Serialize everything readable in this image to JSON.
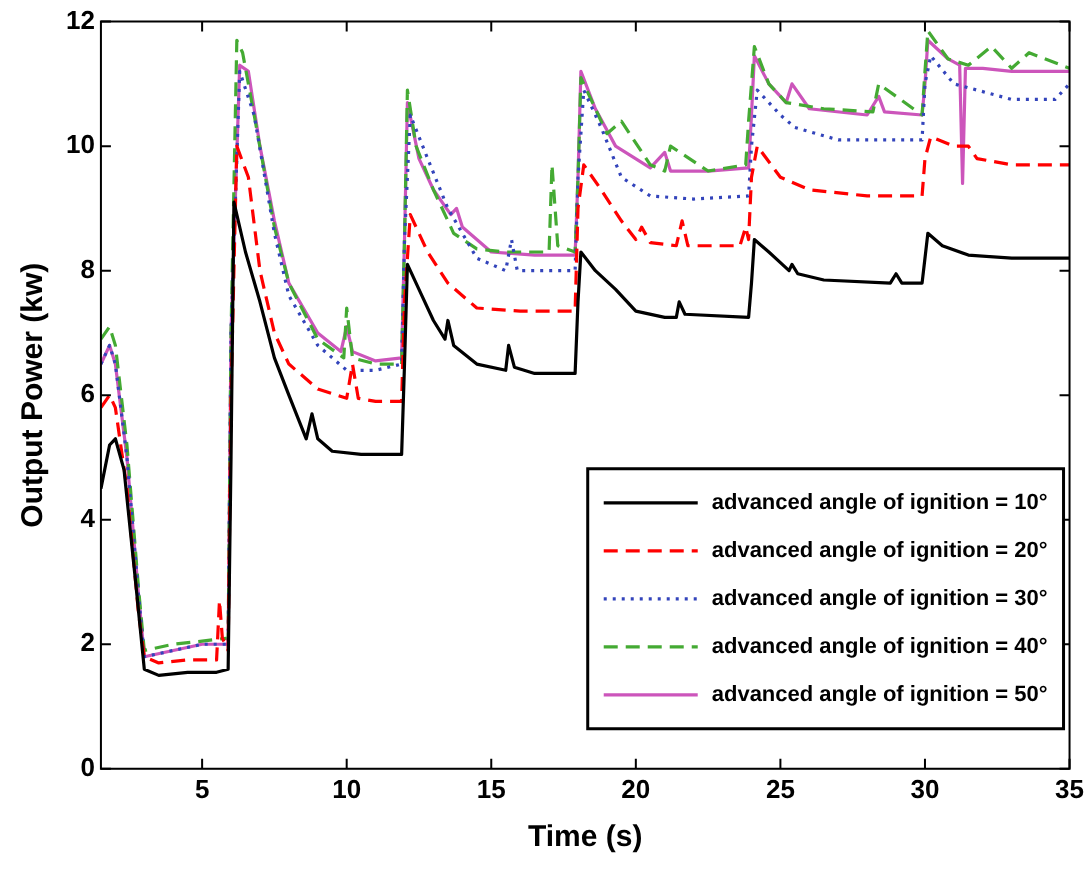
{
  "chart_data": {
    "type": "line",
    "xlabel": "Time (s)",
    "ylabel": "Output Power (kw)",
    "xlim": [
      1.5,
      35
    ],
    "xticks": [
      5,
      10,
      15,
      20,
      25,
      30,
      35
    ],
    "ylim": [
      0,
      12
    ],
    "yticks": [
      0,
      2,
      4,
      6,
      8,
      10,
      12
    ],
    "grid": false,
    "legend": "bottom right",
    "marker": "none",
    "series": [
      {
        "name": "advanced angle of ignition = 10°",
        "color": "#000000",
        "line_style": "solid",
        "x": [
          1.5,
          1.8,
          2.0,
          2.3,
          2.7,
          3.0,
          3.5,
          4.5,
          5.5,
          5.9,
          6.0,
          6.1,
          6.5,
          7.0,
          7.5,
          8.0,
          8.6,
          8.8,
          9.0,
          9.5,
          10.5,
          11.9,
          12.0,
          12.1,
          12.5,
          13.0,
          13.4,
          13.5,
          13.7,
          14.5,
          15.5,
          15.6,
          15.8,
          16.5,
          17.9,
          18.0,
          18.1,
          18.6,
          19.3,
          20.0,
          21.0,
          21.4,
          21.5,
          21.7,
          23.9,
          24.0,
          24.1,
          24.6,
          25.3,
          25.4,
          25.6,
          26.5,
          28.8,
          29.0,
          29.2,
          29.9,
          30.0,
          30.1,
          30.6,
          31.5,
          33.0,
          35.0
        ],
        "values": [
          4.5,
          5.2,
          5.3,
          4.8,
          3.0,
          1.6,
          1.5,
          1.55,
          1.55,
          1.6,
          5,
          9.1,
          8.3,
          7.5,
          6.6,
          6.0,
          5.3,
          5.7,
          5.3,
          5.1,
          5.05,
          5.05,
          6.5,
          8.1,
          7.7,
          7.2,
          6.9,
          7.2,
          6.8,
          6.5,
          6.4,
          6.8,
          6.45,
          6.35,
          6.35,
          7.5,
          8.3,
          8.0,
          7.7,
          7.35,
          7.25,
          7.25,
          7.5,
          7.3,
          7.25,
          7.8,
          8.5,
          8.3,
          8.0,
          8.1,
          7.95,
          7.85,
          7.8,
          7.95,
          7.8,
          7.8,
          8.2,
          8.6,
          8.4,
          8.25,
          8.2,
          8.2
        ]
      },
      {
        "name": "advanced angle of ignition = 20°",
        "color": "#ff0000",
        "line_style": "dashed",
        "x": [
          1.5,
          1.8,
          2.0,
          2.4,
          2.8,
          3.0,
          3.5,
          4.5,
          5.5,
          5.6,
          5.7,
          5.9,
          6.0,
          6.2,
          6.6,
          7.0,
          7.5,
          8.0,
          9.0,
          10.0,
          10.2,
          10.4,
          11.0,
          11.9,
          12.0,
          12.2,
          12.8,
          13.5,
          14.5,
          16.0,
          17.9,
          18.0,
          18.2,
          18.8,
          19.5,
          20.0,
          20.2,
          20.5,
          21.4,
          21.6,
          21.8,
          23.6,
          23.8,
          23.9,
          24.0,
          24.2,
          25.0,
          26.0,
          28.0,
          29.9,
          30.0,
          30.2,
          31.0,
          31.5,
          31.8,
          33.0,
          35.0
        ],
        "values": [
          5.8,
          6.0,
          5.8,
          4.5,
          2.5,
          1.8,
          1.7,
          1.75,
          1.75,
          2.7,
          2.1,
          1.9,
          6.0,
          10.0,
          9.5,
          8.0,
          7.0,
          6.5,
          6.1,
          5.95,
          6.5,
          5.95,
          5.9,
          5.9,
          7.5,
          8.9,
          8.3,
          7.8,
          7.4,
          7.35,
          7.35,
          9.0,
          9.7,
          9.3,
          8.8,
          8.5,
          8.7,
          8.45,
          8.4,
          8.8,
          8.4,
          8.4,
          8.7,
          8.5,
          9.5,
          10.0,
          9.5,
          9.3,
          9.2,
          9.2,
          9.8,
          10.15,
          10.0,
          10.0,
          9.8,
          9.7,
          9.7
        ]
      },
      {
        "name": "advanced angle of ignition = 30°",
        "color": "#3344bb",
        "line_style": "dotted",
        "x": [
          1.5,
          1.8,
          2.0,
          2.4,
          2.8,
          3.0,
          4.0,
          5.0,
          5.9,
          6.0,
          6.3,
          6.8,
          7.5,
          8.0,
          9.0,
          10.0,
          11.0,
          11.9,
          12.0,
          12.2,
          12.8,
          13.5,
          14.5,
          15.5,
          15.7,
          15.9,
          17.9,
          18.0,
          18.2,
          18.8,
          19.5,
          20.5,
          22.0,
          23.9,
          24.0,
          24.2,
          25.0,
          25.5,
          27.0,
          29.9,
          30.0,
          30.2,
          31.0,
          33.0,
          34.5,
          35.0
        ],
        "values": [
          6.5,
          6.8,
          6.5,
          5.0,
          2.8,
          1.8,
          1.9,
          2.0,
          2.0,
          7.0,
          11.2,
          10.5,
          8.6,
          7.6,
          6.8,
          6.4,
          6.4,
          6.5,
          8.5,
          10.5,
          9.8,
          9.0,
          8.2,
          8.0,
          8.5,
          8.0,
          8.0,
          9.5,
          10.9,
          10.3,
          9.5,
          9.2,
          9.15,
          9.2,
          10.0,
          10.9,
          10.5,
          10.3,
          10.1,
          10.1,
          11.0,
          11.45,
          11.0,
          10.75,
          10.75,
          11.0
        ]
      },
      {
        "name": "advanced angle of ignition = 40°",
        "color": "#44aa33",
        "line_style": "dashed",
        "x": [
          1.5,
          1.8,
          2.0,
          2.4,
          2.8,
          3.0,
          4.0,
          5.0,
          5.9,
          6.0,
          6.2,
          6.4,
          6.8,
          7.5,
          8.0,
          9.0,
          9.9,
          10.0,
          10.2,
          11.0,
          11.9,
          12.0,
          12.1,
          12.4,
          13.0,
          13.7,
          14.5,
          15.5,
          17.0,
          17.1,
          17.3,
          17.9,
          18.0,
          18.1,
          18.6,
          19.0,
          19.5,
          20.5,
          21.0,
          21.2,
          22.5,
          23.8,
          23.9,
          24.0,
          24.1,
          24.6,
          25.2,
          26.5,
          28.2,
          28.4,
          29.9,
          30.0,
          30.1,
          30.8,
          31.5,
          32.3,
          33.0,
          33.6,
          35.0
        ],
        "values": [
          6.9,
          7.1,
          6.8,
          5.2,
          2.9,
          1.9,
          2.0,
          2.05,
          2.1,
          7.0,
          11.7,
          11.5,
          10.5,
          8.7,
          7.8,
          6.9,
          6.6,
          7.4,
          6.6,
          6.5,
          6.5,
          8.5,
          10.9,
          10.0,
          9.3,
          8.6,
          8.35,
          8.3,
          8.3,
          9.7,
          8.4,
          8.3,
          9.5,
          11.1,
          10.6,
          10.2,
          10.4,
          9.7,
          9.6,
          10.0,
          9.6,
          9.7,
          10.4,
          11.0,
          11.6,
          11.0,
          10.7,
          10.6,
          10.55,
          11.0,
          10.5,
          11.2,
          11.85,
          11.4,
          11.3,
          11.6,
          11.25,
          11.5,
          11.25
        ]
      },
      {
        "name": "advanced angle of ignition = 50°",
        "color": "#cc55bb",
        "line_style": "solid",
        "x": [
          1.5,
          1.8,
          2.0,
          2.4,
          2.8,
          3.0,
          4.0,
          5.0,
          5.9,
          6.0,
          6.3,
          6.6,
          7.0,
          7.5,
          8.0,
          9.0,
          9.8,
          10.0,
          10.2,
          11.0,
          11.9,
          12.0,
          12.1,
          12.5,
          13.0,
          13.6,
          13.8,
          14.0,
          15.0,
          16.5,
          17.9,
          18.0,
          18.1,
          18.6,
          19.3,
          20.5,
          21.0,
          21.2,
          22.5,
          23.9,
          24.0,
          24.1,
          24.6,
          25.2,
          25.4,
          26.0,
          28.0,
          28.4,
          28.6,
          29.9,
          30.0,
          30.1,
          30.8,
          31.2,
          31.3,
          31.4,
          32.0,
          33.0,
          35.0
        ],
        "values": [
          6.5,
          6.8,
          6.5,
          5.0,
          2.8,
          1.8,
          1.9,
          2.0,
          2.0,
          7.0,
          11.3,
          11.2,
          10.0,
          8.8,
          7.8,
          7.0,
          6.7,
          7.1,
          6.7,
          6.55,
          6.6,
          8.5,
          10.7,
          9.8,
          9.3,
          8.9,
          9.0,
          8.7,
          8.3,
          8.25,
          8.25,
          9.5,
          11.2,
          10.6,
          10.0,
          9.65,
          9.9,
          9.6,
          9.6,
          9.65,
          10.5,
          11.45,
          11.0,
          10.7,
          11.0,
          10.6,
          10.5,
          10.8,
          10.55,
          10.5,
          11.0,
          11.7,
          11.4,
          11.3,
          9.4,
          11.25,
          11.25,
          11.2,
          11.2
        ]
      }
    ]
  }
}
